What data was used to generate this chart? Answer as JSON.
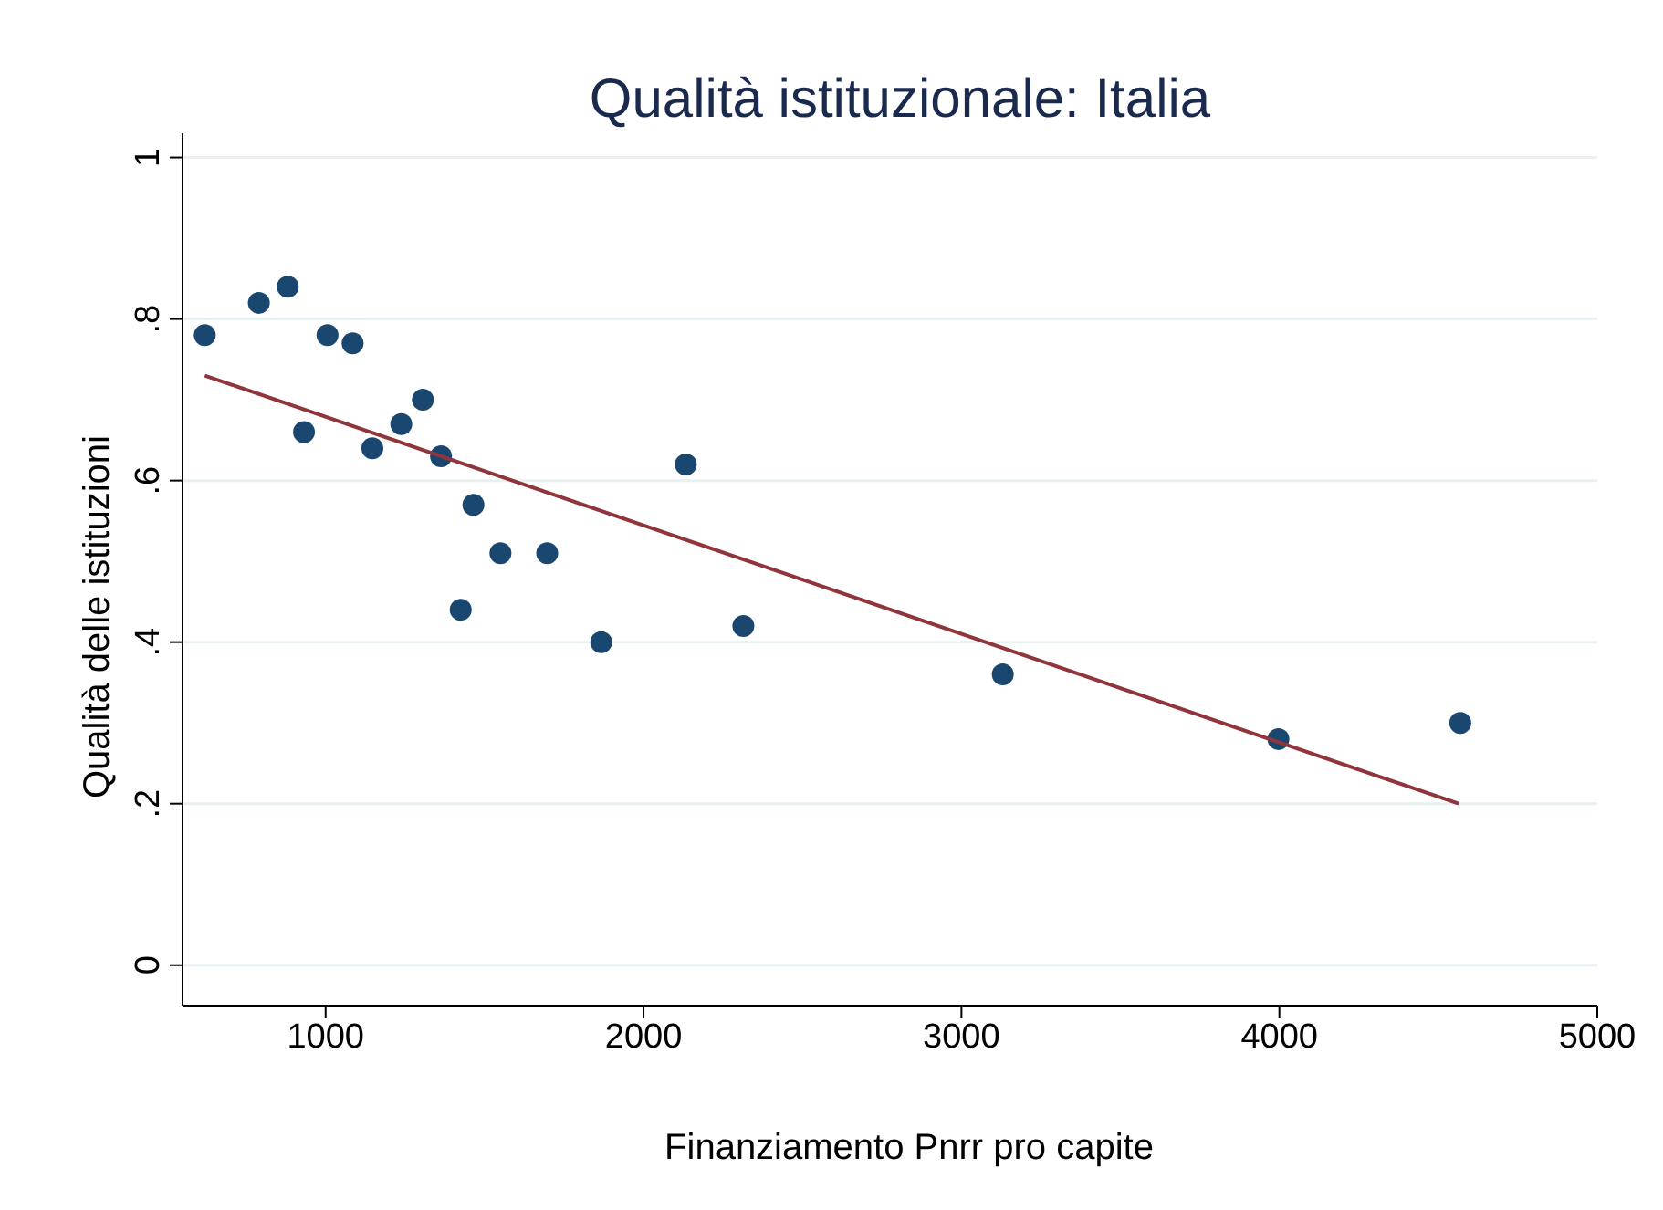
{
  "chart_data": {
    "type": "scatter",
    "title": "Qualità istituzionale: Italia",
    "xlabel": "Finanziamento Pnrr pro capite",
    "ylabel": "Qualità delle istituzioni",
    "x": [
      620,
      790,
      881,
      932,
      1006,
      1085,
      1147,
      1238,
      1306,
      1363,
      1465,
      1425,
      1550,
      1697,
      1867,
      2133,
      2314,
      3130,
      3997,
      4569
    ],
    "series": [
      {
        "color": "#1a476f",
        "values": [
          0.78,
          0.82,
          0.84,
          0.66,
          0.78,
          0.77,
          0.64,
          0.67,
          0.7,
          0.63,
          0.57,
          0.44,
          0.51,
          0.51,
          0.4,
          0.62,
          0.42,
          0.36,
          0.28,
          0.3
        ]
      },
      {
        "type": "line",
        "marker": "none",
        "color": "#90353b",
        "x": [
          620,
          4564
        ],
        "values": [
          0.73,
          0.2
        ]
      }
    ],
    "xlim": [
      550,
      5000
    ],
    "xticks": [
      1000,
      2000,
      3000,
      4000,
      5000
    ],
    "ylim": [
      -0.05,
      1.03
    ],
    "yticks": [
      0,
      {
        "value": 0.2,
        "label": ".2"
      },
      {
        "value": 0.4,
        "label": ".4"
      },
      {
        "value": 0.6,
        "label": ".6"
      },
      {
        "value": 0.8,
        "label": ".8"
      },
      1
    ],
    "grid": "y",
    "marker": "circle",
    "legend": false
  }
}
